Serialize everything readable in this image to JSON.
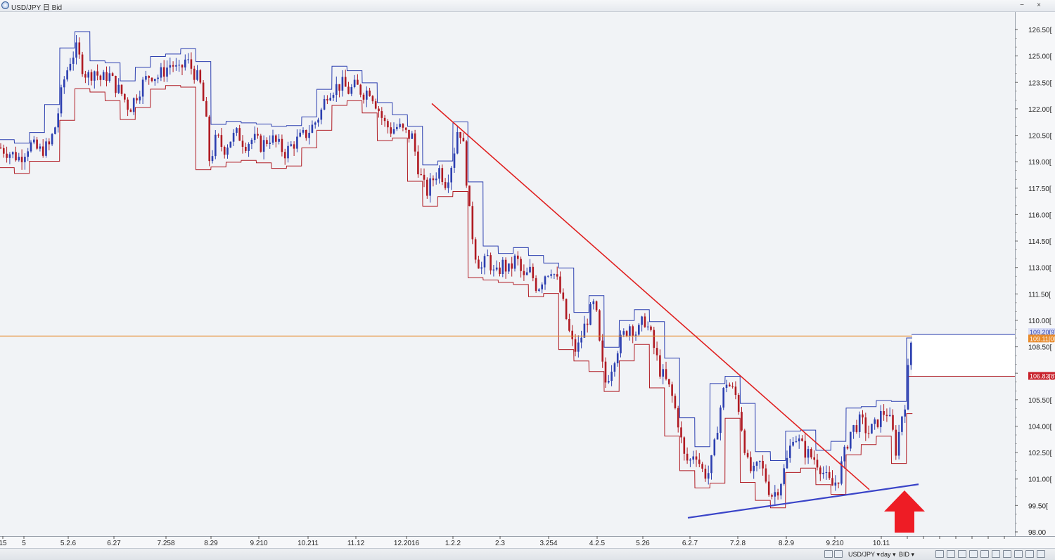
{
  "window": {
    "title": "USD/JPY 日 Bid",
    "buttons": {
      "minimize": "−",
      "close": "×"
    }
  },
  "toolbar": {
    "instrument": "USD/JPY ▾",
    "period": "day ▾",
    "side": "BID ▾",
    "tools": [
      "crosshair-icon",
      "zoom-in-icon",
      "zoom-out-icon",
      "grid-icon",
      "settings-icon"
    ]
  },
  "colors": {
    "bull": "#2c3fb0",
    "bear": "#b01a22",
    "trend_down": "#e02020",
    "trend_up": "#3a44c8",
    "price_line": "#e88a2a",
    "arrow": "#ee1c25",
    "ask_label_bg": "#e88a2a",
    "bid_label_bg": "#c8202a"
  },
  "chart_data": {
    "type": "candlestick",
    "instrument": "USD/JPY",
    "period": "day",
    "side": "Bid",
    "y_axis": {
      "min": 98.0,
      "max": 126.5,
      "tick_values": [
        98.0,
        99.5,
        101.0,
        102.5,
        104.0,
        105.5,
        107.0,
        108.5,
        110.0,
        111.5,
        113.0,
        114.5,
        116.0,
        117.5,
        119.0,
        120.5,
        122.0,
        123.5,
        125.0,
        126.5
      ],
      "tick_labels": [
        "98.00",
        "99.50[",
        "101.00[",
        "102.50[",
        "104.00[",
        "105.50[",
        "",
        "108.50[",
        "110.00[",
        "111.50[",
        "113.00[",
        "114.50[",
        "116.00[",
        "117.50[",
        "119.00[",
        "120.50[",
        "122.00[",
        "123.50[",
        "125.00[",
        "126.50["
      ]
    },
    "x_axis": {
      "tick_labels": [
        "15",
        "5",
        "5.2.6",
        "6.27",
        "7.258",
        "8.29",
        "9.210",
        "10.211",
        "11.12",
        "12.2016",
        "1.2.2",
        "2.3",
        "3.254",
        "4.2.5",
        "5.26",
        "6.2.7",
        "7.2.8",
        "8.2.9",
        "9.210",
        "10.11"
      ]
    },
    "price_labels": {
      "ask": "109.20[9]",
      "current": "109.11[0]",
      "bid": "106.83[8]"
    },
    "current_price": 109.11,
    "ask_price": 109.2,
    "bid_price": 106.83,
    "close_path": [
      [
        0,
        119.8
      ],
      [
        14,
        119.5
      ],
      [
        28,
        119.2
      ],
      [
        42,
        120.0
      ],
      [
        56,
        119.6
      ],
      [
        70,
        119.9
      ],
      [
        80,
        121.2
      ],
      [
        90,
        123.5
      ],
      [
        100,
        124.8
      ],
      [
        108,
        125.4
      ],
      [
        116,
        124.5
      ],
      [
        124,
        123.8
      ],
      [
        134,
        124.2
      ],
      [
        144,
        123.6
      ],
      [
        154,
        124.0
      ],
      [
        164,
        123.3
      ],
      [
        174,
        122.8
      ],
      [
        184,
        122.0
      ],
      [
        194,
        122.8
      ],
      [
        204,
        123.5
      ],
      [
        214,
        124.0
      ],
      [
        224,
        123.8
      ],
      [
        234,
        124.2
      ],
      [
        244,
        124.6
      ],
      [
        254,
        124.0
      ],
      [
        264,
        124.8
      ],
      [
        274,
        124.2
      ],
      [
        284,
        123.5
      ],
      [
        292,
        121.8
      ],
      [
        298,
        119.0
      ],
      [
        308,
        120.4
      ],
      [
        318,
        119.7
      ],
      [
        328,
        120.3
      ],
      [
        338,
        120.6
      ],
      [
        348,
        120.0
      ],
      [
        360,
        120.3
      ],
      [
        372,
        119.9
      ],
      [
        384,
        120.4
      ],
      [
        396,
        119.9
      ],
      [
        406,
        119.5
      ],
      [
        416,
        120.0
      ],
      [
        426,
        120.3
      ],
      [
        436,
        120.6
      ],
      [
        446,
        121.1
      ],
      [
        456,
        121.8
      ],
      [
        466,
        123.0
      ],
      [
        476,
        123.2
      ],
      [
        486,
        123.4
      ],
      [
        496,
        123.0
      ],
      [
        506,
        123.3
      ],
      [
        516,
        122.9
      ],
      [
        526,
        123.1
      ],
      [
        536,
        122.2
      ],
      [
        546,
        121.2
      ],
      [
        556,
        120.8
      ],
      [
        566,
        121.0
      ],
      [
        576,
        120.6
      ],
      [
        586,
        120.4
      ],
      [
        596,
        118.4
      ],
      [
        606,
        117.2
      ],
      [
        614,
        117.9
      ],
      [
        624,
        118.6
      ],
      [
        634,
        117.8
      ],
      [
        644,
        119.2
      ],
      [
        652,
        121.2
      ],
      [
        660,
        119.6
      ],
      [
        668,
        115.8
      ],
      [
        676,
        113.8
      ],
      [
        684,
        112.9
      ],
      [
        694,
        113.6
      ],
      [
        704,
        112.4
      ],
      [
        714,
        113.2
      ],
      [
        724,
        112.8
      ],
      [
        734,
        113.6
      ],
      [
        744,
        112.3
      ],
      [
        754,
        112.8
      ],
      [
        764,
        111.8
      ],
      [
        774,
        112.6
      ],
      [
        784,
        113.0
      ],
      [
        794,
        112.0
      ],
      [
        804,
        110.3
      ],
      [
        812,
        108.8
      ],
      [
        820,
        108.2
      ],
      [
        828,
        109.3
      ],
      [
        836,
        110.2
      ],
      [
        846,
        111.0
      ],
      [
        852,
        108.7
      ],
      [
        860,
        106.4
      ],
      [
        868,
        107.2
      ],
      [
        876,
        108.3
      ],
      [
        886,
        109.1
      ],
      [
        896,
        109.8
      ],
      [
        906,
        109.2
      ],
      [
        916,
        110.1
      ],
      [
        924,
        109.3
      ],
      [
        930,
        108.4
      ],
      [
        938,
        107.2
      ],
      [
        946,
        106.6
      ],
      [
        954,
        105.9
      ],
      [
        964,
        104.3
      ],
      [
        972,
        102.3
      ],
      [
        980,
        101.9
      ],
      [
        988,
        102.7
      ],
      [
        998,
        101.5
      ],
      [
        1006,
        101.2
      ],
      [
        1014,
        102.3
      ],
      [
        1022,
        104.6
      ],
      [
        1032,
        106.6
      ],
      [
        1040,
        106.1
      ],
      [
        1048,
        105.6
      ],
      [
        1056,
        103.6
      ],
      [
        1064,
        101.6
      ],
      [
        1072,
        101.3
      ],
      [
        1080,
        101.9
      ],
      [
        1088,
        101.1
      ],
      [
        1096,
        100.1
      ],
      [
        1104,
        100.3
      ],
      [
        1112,
        101.1
      ],
      [
        1120,
        102.2
      ],
      [
        1128,
        103.6
      ],
      [
        1136,
        103.1
      ],
      [
        1144,
        102.6
      ],
      [
        1152,
        102.3
      ],
      [
        1160,
        102.1
      ],
      [
        1168,
        101.6
      ],
      [
        1176,
        100.9
      ],
      [
        1184,
        100.6
      ],
      [
        1192,
        101.1
      ],
      [
        1200,
        102.3
      ],
      [
        1208,
        103.6
      ],
      [
        1216,
        104.0
      ],
      [
        1224,
        104.3
      ],
      [
        1234,
        103.6
      ],
      [
        1244,
        104.0
      ],
      [
        1252,
        104.6
      ],
      [
        1260,
        104.9
      ],
      [
        1268,
        103.9
      ],
      [
        1274,
        102.6
      ],
      [
        1282,
        104.6
      ],
      [
        1288,
        105.6
      ],
      [
        1294,
        108.6
      ],
      [
        1298,
        109.1
      ]
    ],
    "annotations": {
      "down_trendline": {
        "from": [
          614,
          122.3
        ],
        "to": [
          1236,
          100.4
        ]
      },
      "up_trendline": {
        "from": [
          978,
          98.8
        ],
        "to": [
          1306,
          100.7
        ]
      },
      "arrow": {
        "x": 1286,
        "direction": "up"
      }
    }
  }
}
